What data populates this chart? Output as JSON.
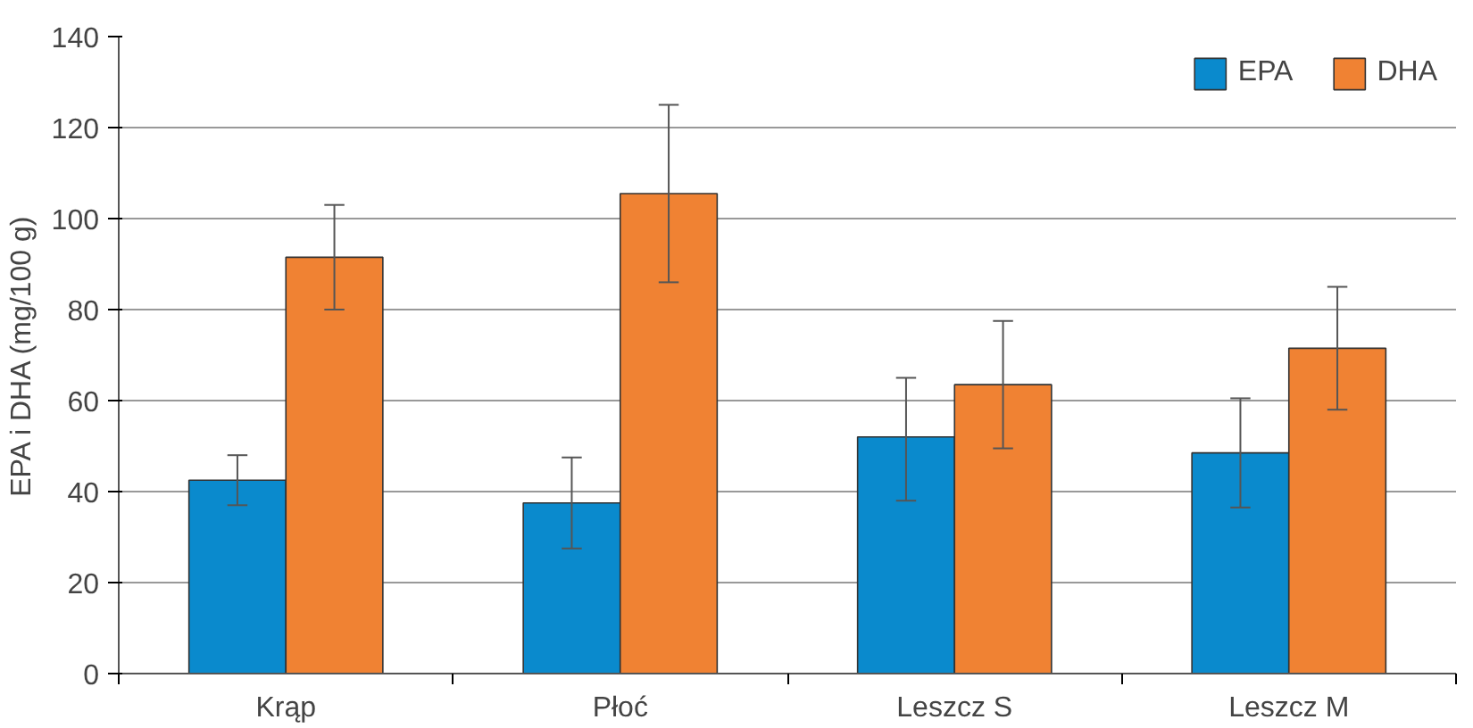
{
  "chart_data": {
    "type": "bar",
    "ylabel": "EPA i DHA (mg/100 g)",
    "categories": [
      "Krąp",
      "Płoć",
      "Leszcz S",
      "Leszcz M"
    ],
    "series": [
      {
        "name": "EPA",
        "color": "#0a8acd",
        "values": [
          42.5,
          37.5,
          52,
          48.5
        ],
        "errors": [
          [
            37,
            48
          ],
          [
            27.5,
            47.5
          ],
          [
            38,
            65
          ],
          [
            36.5,
            60.5
          ]
        ]
      },
      {
        "name": "DHA",
        "color": "#f08233",
        "values": [
          91.5,
          105.5,
          63.5,
          71.5
        ],
        "errors": [
          [
            80,
            103
          ],
          [
            86,
            125
          ],
          [
            49.5,
            77.5
          ],
          [
            58,
            85
          ]
        ]
      }
    ],
    "ylim": [
      0,
      140
    ],
    "yticks": [
      0,
      20,
      40,
      60,
      80,
      100,
      120,
      140
    ],
    "grid": "y",
    "legend": "top right"
  }
}
